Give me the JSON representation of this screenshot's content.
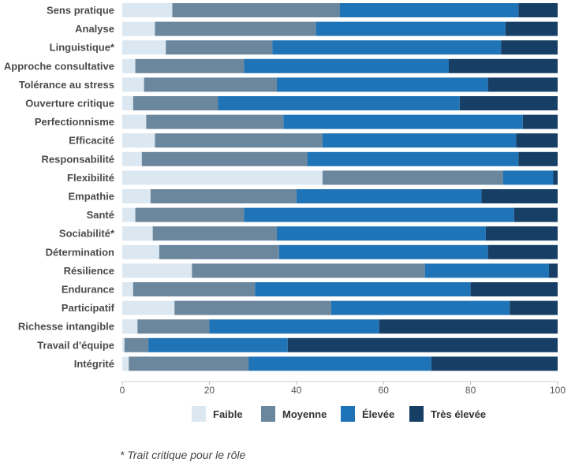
{
  "chart_data": {
    "type": "bar",
    "orientation": "horizontal",
    "stacked": true,
    "categories": [
      "Sens pratique",
      "Analyse",
      "Linguistique*",
      "Approche consultative",
      "Tolérance au stress",
      "Ouverture critique",
      "Perfectionnisme",
      "Efficacité",
      "Responsabilité",
      "Flexibilité",
      "Empathie",
      "Santé",
      "Sociabilité*",
      "Détermination",
      "Résilience",
      "Endurance",
      "Participatif",
      "Richesse intangible",
      "Travail d'équipe",
      "Intégrité"
    ],
    "series": [
      {
        "name": "Faible",
        "color": "#dbe8f2",
        "values": [
          11.5,
          7.5,
          10,
          3,
          5,
          2.5,
          5.5,
          7.5,
          4.5,
          46,
          6.5,
          3,
          7,
          8.5,
          16,
          2.5,
          12,
          3.5,
          0.5,
          1.5
        ]
      },
      {
        "name": "Moyenne",
        "color": "#6b879e",
        "values": [
          38.5,
          37,
          24.5,
          25,
          30.5,
          19.5,
          31.5,
          38.5,
          38,
          41.5,
          33.5,
          25,
          28.5,
          27.5,
          53.5,
          28,
          36,
          16.5,
          5.5,
          27.5
        ]
      },
      {
        "name": "Élevée",
        "color": "#1f73b7",
        "values": [
          41,
          43.5,
          52.5,
          47,
          48.5,
          55.5,
          55,
          44.5,
          48.5,
          11.5,
          42.5,
          62,
          48,
          48,
          28.5,
          49.5,
          41,
          39,
          32,
          42
        ]
      },
      {
        "name": "Très élevée",
        "color": "#173f66",
        "values": [
          9,
          12,
          13,
          25,
          16,
          22.5,
          8,
          9.5,
          9,
          1,
          17.5,
          10,
          16.5,
          16,
          2,
          20,
          11,
          41,
          62,
          29
        ]
      }
    ],
    "xlim": [
      0,
      100
    ],
    "xticks": [
      0,
      20,
      40,
      60,
      80,
      100
    ],
    "legend_position": "bottom"
  },
  "footnote": "* Trait critique pour le rôle"
}
